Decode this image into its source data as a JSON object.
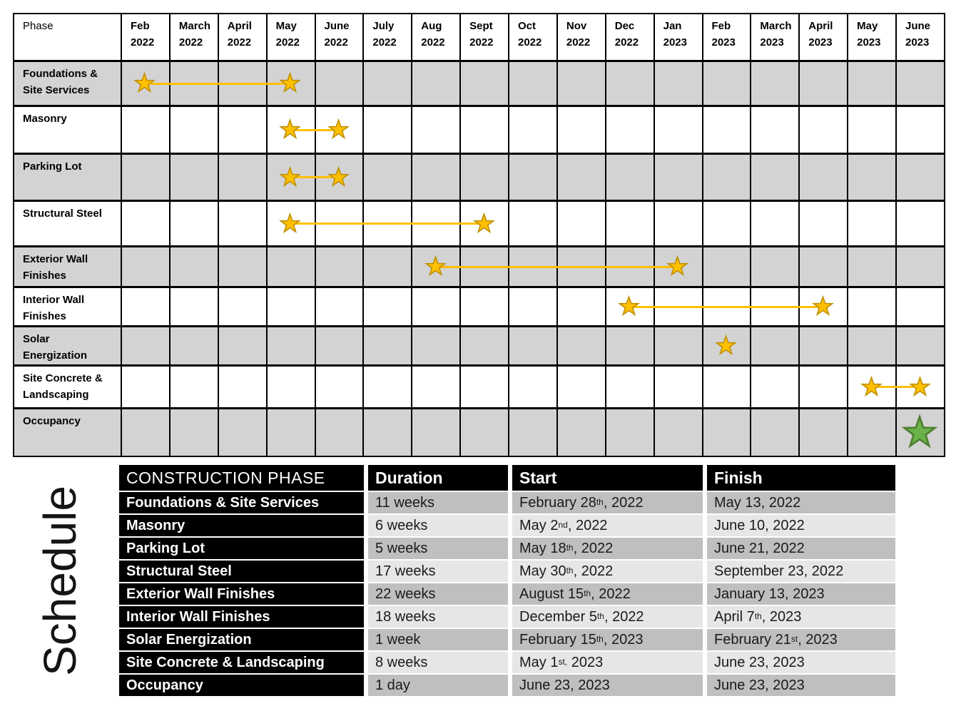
{
  "slide": {
    "side_label": "Schedule"
  },
  "gantt": {
    "phase_header": "Phase",
    "months": [
      "Feb 2022",
      "March 2022",
      "April 2022",
      "May 2022",
      "June 2022",
      "July 2022",
      "Aug 2022",
      "Sept 2022",
      "Oct 2022",
      "Nov 2022",
      "Dec 2022",
      "Jan 2023",
      "Feb 2023",
      "March 2023",
      "April 2023",
      "May 2023",
      "June 2023"
    ],
    "colors": {
      "row_shade": "#D3D3D3",
      "star_fill": "#FFC000",
      "star_stroke": "#BF9000",
      "connector": "#FFC000",
      "milestone_fill": "#6BB24A",
      "milestone_stroke": "#4E8031"
    },
    "rows": [
      {
        "label": "Foundations & Site Services",
        "start_month": "Feb 2022",
        "end_month": "May 2022"
      },
      {
        "label": "Masonry",
        "start_month": "May 2022",
        "end_month": "June 2022"
      },
      {
        "label": "Parking Lot",
        "start_month": "May 2022",
        "end_month": "June 2022"
      },
      {
        "label": "Structural Steel",
        "start_month": "May 2022",
        "end_month": "Sept 2022"
      },
      {
        "label": "Exterior Wall Finishes",
        "start_month": "Aug 2022",
        "end_month": "Jan 2023"
      },
      {
        "label": "Interior Wall Finishes",
        "start_month": "Dec 2022",
        "end_month": "April 2023"
      },
      {
        "label": "Solar Energization",
        "start_month": "Feb 2023",
        "end_month": "Feb 2023"
      },
      {
        "label": "Site Concrete & Landscaping",
        "start_month": "May 2023",
        "end_month": "June 2023"
      },
      {
        "label": "Occupancy",
        "start_month": "June 2023",
        "end_month": "June 2023",
        "milestone": "green-star"
      }
    ]
  },
  "schedule_table": {
    "headers": [
      "CONSTRUCTION PHASE",
      "Duration",
      "Start",
      "Finish"
    ],
    "rows": [
      {
        "phase": "Foundations & Site Services",
        "duration": "11 weeks",
        "start": {
          "main": "February 28",
          "sup": "th",
          "tail": ", 2022"
        },
        "finish": {
          "main": "May 13, 2022",
          "sup": "",
          "tail": ""
        }
      },
      {
        "phase": "Masonry",
        "duration": "6 weeks",
        "start": {
          "main": "May 2",
          "sup": "nd",
          "tail": ", 2022"
        },
        "finish": {
          "main": "June 10, 2022",
          "sup": "",
          "tail": ""
        }
      },
      {
        "phase": "Parking Lot",
        "duration": "5 weeks",
        "start": {
          "main": "May 18",
          "sup": "th",
          "tail": ", 2022"
        },
        "finish": {
          "main": "June 21, 2022",
          "sup": "",
          "tail": ""
        }
      },
      {
        "phase": "Structural Steel",
        "duration": "17 weeks",
        "start": {
          "main": "May 30",
          "sup": "th",
          "tail": ", 2022"
        },
        "finish": {
          "main": "September 23, 2022",
          "sup": "",
          "tail": ""
        }
      },
      {
        "phase": "Exterior Wall Finishes",
        "duration": "22 weeks",
        "start": {
          "main": "August 15",
          "sup": "th",
          "tail": ", 2022"
        },
        "finish": {
          "main": "January 13, 2023",
          "sup": "",
          "tail": ""
        }
      },
      {
        "phase": "Interior Wall Finishes",
        "duration": "18 weeks",
        "start": {
          "main": "December 5",
          "sup": "th",
          "tail": ", 2022"
        },
        "finish": {
          "main": "April 7",
          "sup": "th",
          "tail": ", 2023"
        }
      },
      {
        "phase": "Solar Energization",
        "duration": "1 week",
        "start": {
          "main": "February 15",
          "sup": "th",
          "tail": ", 2023"
        },
        "finish": {
          "main": "February 21",
          "sup": "st",
          "tail": ", 2023"
        }
      },
      {
        "phase": "Site Concrete & Landscaping",
        "duration": "8 weeks",
        "start": {
          "main": "May 1",
          "sup": "st,",
          "tail": " 2023"
        },
        "finish": {
          "main": "June 23, 2023",
          "sup": "",
          "tail": ""
        }
      },
      {
        "phase": "Occupancy",
        "duration": "1 day",
        "start": {
          "main": "June 23, 2023",
          "sup": "",
          "tail": ""
        },
        "finish": {
          "main": "June 23, 2023",
          "sup": "",
          "tail": ""
        }
      }
    ]
  },
  "chart_data": {
    "type": "table",
    "title": "Schedule",
    "gantt_months": [
      "Feb 2022",
      "March 2022",
      "April 2022",
      "May 2022",
      "June 2022",
      "July 2022",
      "Aug 2022",
      "Sept 2022",
      "Oct 2022",
      "Nov 2022",
      "Dec 2022",
      "Jan 2023",
      "Feb 2023",
      "March 2023",
      "April 2023",
      "May 2023",
      "June 2023"
    ],
    "columns": [
      "CONSTRUCTION PHASE",
      "Duration",
      "Start",
      "Finish"
    ],
    "rows": [
      [
        "Foundations & Site Services",
        "11 weeks",
        "February 28th, 2022",
        "May 13, 2022"
      ],
      [
        "Masonry",
        "6 weeks",
        "May 2nd, 2022",
        "June 10, 2022"
      ],
      [
        "Parking Lot",
        "5 weeks",
        "May 18th, 2022",
        "June 21, 2022"
      ],
      [
        "Structural Steel",
        "17 weeks",
        "May 30th, 2022",
        "September 23, 2022"
      ],
      [
        "Exterior Wall Finishes",
        "22 weeks",
        "August 15th, 2022",
        "January 13, 2023"
      ],
      [
        "Interior Wall Finishes",
        "18 weeks",
        "December 5th, 2022",
        "April 7th, 2023"
      ],
      [
        "Solar Energization",
        "1 week",
        "February 15th, 2023",
        "February 21st, 2023"
      ],
      [
        "Site Concrete & Landscaping",
        "8 weeks",
        "May 1st, 2023",
        "June 23, 2023"
      ],
      [
        "Occupancy",
        "1 day",
        "June 23, 2023",
        "June 23, 2023"
      ]
    ],
    "gantt_ranges": [
      {
        "phase": "Foundations & Site Services",
        "from": "Feb 2022",
        "to": "May 2022",
        "marker": "gold-star"
      },
      {
        "phase": "Masonry",
        "from": "May 2022",
        "to": "June 2022",
        "marker": "gold-star"
      },
      {
        "phase": "Parking Lot",
        "from": "May 2022",
        "to": "June 2022",
        "marker": "gold-star"
      },
      {
        "phase": "Structural Steel",
        "from": "May 2022",
        "to": "Sept 2022",
        "marker": "gold-star"
      },
      {
        "phase": "Exterior Wall Finishes",
        "from": "Aug 2022",
        "to": "Jan 2023",
        "marker": "gold-star"
      },
      {
        "phase": "Interior Wall Finishes",
        "from": "Dec 2022",
        "to": "April 2023",
        "marker": "gold-star"
      },
      {
        "phase": "Solar Energization",
        "from": "Feb 2023",
        "to": "Feb 2023",
        "marker": "gold-star"
      },
      {
        "phase": "Site Concrete & Landscaping",
        "from": "May 2023",
        "to": "June 2023",
        "marker": "gold-star"
      },
      {
        "phase": "Occupancy",
        "from": "June 2023",
        "to": "June 2023",
        "marker": "green-star"
      }
    ]
  }
}
